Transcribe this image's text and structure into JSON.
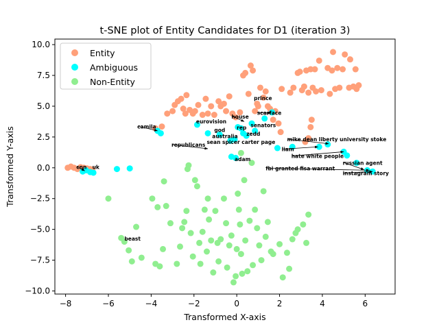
{
  "chart_data": {
    "type": "scatter",
    "title": "t-SNE plot of Entity Candidates for D1 (iteration 3)",
    "xlabel": "Transformed X-axis",
    "ylabel": "Transformed Y-axis",
    "xlim": [
      -8.5,
      7.4
    ],
    "ylim": [
      -10.25,
      10.45
    ],
    "xticks": [
      -8,
      -6,
      -4,
      -2,
      0,
      2,
      4,
      6
    ],
    "yticks": [
      -10.0,
      -7.5,
      -5.0,
      -2.5,
      0.0,
      2.5,
      5.0,
      7.5,
      10.0
    ],
    "xtick_labels": [
      "−8",
      "−6",
      "−4",
      "−2",
      "0",
      "2",
      "4",
      "6"
    ],
    "ytick_labels": [
      "−10.0",
      "−7.5",
      "−5.0",
      "−2.5",
      "0.0",
      "2.5",
      "5.0",
      "7.5",
      "10.0"
    ],
    "grid": false,
    "legend": {
      "placement": "top-left"
    },
    "series": [
      {
        "name": "Entity",
        "color": "#ffa07a",
        "points": [
          [
            -7.9,
            0.0
          ],
          [
            -7.75,
            0.1
          ],
          [
            -7.6,
            0.0
          ],
          [
            -7.45,
            -0.1
          ],
          [
            -7.3,
            0.05
          ],
          [
            -7.15,
            0.0
          ],
          [
            -7.0,
            -0.05
          ],
          [
            -6.85,
            -0.1
          ],
          [
            -6.75,
            -0.15
          ],
          [
            -3.8,
            3.2
          ],
          [
            -3.5,
            3.35
          ],
          [
            -3.25,
            4.4
          ],
          [
            -3.0,
            4.6
          ],
          [
            -2.9,
            5.1
          ],
          [
            -2.75,
            5.4
          ],
          [
            -2.6,
            5.6
          ],
          [
            -2.5,
            4.8
          ],
          [
            -2.4,
            4.4
          ],
          [
            -2.35,
            5.9
          ],
          [
            -2.2,
            4.7
          ],
          [
            -2.05,
            4.4
          ],
          [
            -1.95,
            4.6
          ],
          [
            -1.8,
            5.1
          ],
          [
            -1.6,
            4.3
          ],
          [
            -1.45,
            5.6
          ],
          [
            -1.35,
            4.4
          ],
          [
            -1.2,
            5.0
          ],
          [
            -1.05,
            4.3
          ],
          [
            -0.85,
            5.4
          ],
          [
            -0.75,
            5.0
          ],
          [
            -0.6,
            5.2
          ],
          [
            -0.5,
            4.6
          ],
          [
            -0.35,
            5.8
          ],
          [
            -0.2,
            4.4
          ],
          [
            -0.05,
            4.1
          ],
          [
            0.15,
            4.5
          ],
          [
            0.3,
            7.5
          ],
          [
            0.4,
            7.7
          ],
          [
            0.55,
            6.0
          ],
          [
            0.65,
            8.3
          ],
          [
            0.75,
            7.9
          ],
          [
            0.85,
            4.6
          ],
          [
            0.95,
            5.2
          ],
          [
            1.0,
            5.0
          ],
          [
            1.1,
            6.5
          ],
          [
            1.25,
            5.7
          ],
          [
            1.35,
            6.2
          ],
          [
            1.45,
            5.0
          ],
          [
            1.55,
            4.8
          ],
          [
            1.7,
            3.9
          ],
          [
            1.8,
            4.6
          ],
          [
            1.95,
            3.6
          ],
          [
            2.05,
            2.9
          ],
          [
            2.1,
            6.4
          ],
          [
            2.5,
            6.1
          ],
          [
            2.65,
            6.5
          ],
          [
            2.85,
            7.7
          ],
          [
            2.95,
            7.8
          ],
          [
            3.05,
            6.3
          ],
          [
            3.15,
            6.6
          ],
          [
            3.25,
            7.9
          ],
          [
            3.35,
            6.1
          ],
          [
            3.45,
            8.0
          ],
          [
            3.55,
            6.5
          ],
          [
            3.65,
            8.0
          ],
          [
            3.7,
            6.2
          ],
          [
            3.85,
            8.7
          ],
          [
            3.95,
            6.3
          ],
          [
            3.2,
            2.1
          ],
          [
            3.35,
            2.4
          ],
          [
            3.45,
            3.3
          ],
          [
            3.5,
            3.9
          ],
          [
            4.25,
            8.1
          ],
          [
            4.35,
            6.0
          ],
          [
            4.45,
            7.9
          ],
          [
            4.5,
            9.4
          ],
          [
            4.6,
            6.4
          ],
          [
            4.7,
            8.1
          ],
          [
            4.8,
            6.5
          ],
          [
            4.95,
            8.0
          ],
          [
            5.05,
            9.2
          ],
          [
            5.3,
            8.8
          ],
          [
            5.45,
            6.6
          ],
          [
            5.55,
            8.0
          ],
          [
            5.6,
            6.4
          ],
          [
            5.7,
            6.7
          ],
          [
            5.25,
            6.5
          ]
        ]
      },
      {
        "name": "Ambiguous",
        "color": "#00ffff",
        "points": [
          [
            -7.2,
            -0.3
          ],
          [
            -7.05,
            -0.2
          ],
          [
            -6.85,
            -0.35
          ],
          [
            -6.7,
            -0.4
          ],
          [
            -5.6,
            -0.1
          ],
          [
            -5.0,
            -0.05
          ],
          [
            -3.7,
            3.0
          ],
          [
            -3.55,
            2.8
          ],
          [
            -1.85,
            3.5
          ],
          [
            -1.35,
            2.8
          ],
          [
            -0.8,
            2.7
          ],
          [
            -0.3,
            2.2
          ],
          [
            -0.1,
            2.3
          ],
          [
            -0.25,
            0.9
          ],
          [
            -0.05,
            0.8
          ],
          [
            0.05,
            3.3
          ],
          [
            0.2,
            3.2
          ],
          [
            0.3,
            2.8
          ],
          [
            0.45,
            2.6
          ],
          [
            0.7,
            3.6
          ],
          [
            0.85,
            3.0
          ],
          [
            1.3,
            4.0
          ],
          [
            1.65,
            4.5
          ],
          [
            1.9,
            1.6
          ],
          [
            2.6,
            1.7
          ],
          [
            3.85,
            1.7
          ],
          [
            4.25,
            1.9
          ],
          [
            5.0,
            1.3
          ],
          [
            5.15,
            1.0
          ],
          [
            5.6,
            0.4
          ],
          [
            6.1,
            -0.2
          ],
          [
            6.35,
            -0.3
          ]
        ]
      },
      {
        "name": "Non-Entity",
        "color": "#90ee90",
        "points": [
          [
            -6.0,
            -2.5
          ],
          [
            -5.4,
            -5.7
          ],
          [
            -5.25,
            -6.0
          ],
          [
            -5.05,
            -6.7
          ],
          [
            -4.9,
            -7.6
          ],
          [
            -4.7,
            -4.8
          ],
          [
            -4.45,
            -7.3
          ],
          [
            -3.95,
            -2.5
          ],
          [
            -3.8,
            -7.8
          ],
          [
            -3.7,
            -3.2
          ],
          [
            -3.6,
            -8.0
          ],
          [
            -3.45,
            -6.6
          ],
          [
            -3.4,
            -1.1
          ],
          [
            -3.3,
            -3.1
          ],
          [
            -3.1,
            -4.5
          ],
          [
            -2.8,
            -7.8
          ],
          [
            -2.65,
            -6.4
          ],
          [
            -2.55,
            -4.9
          ],
          [
            -2.45,
            -4.4
          ],
          [
            -2.35,
            -3.5
          ],
          [
            -2.3,
            -0.1
          ],
          [
            -2.25,
            0.2
          ],
          [
            -2.15,
            -5.3
          ],
          [
            -2.05,
            -7.2
          ],
          [
            -1.95,
            -1.0
          ],
          [
            -1.85,
            -1.5
          ],
          [
            -1.75,
            -6.1
          ],
          [
            -1.7,
            -7.8
          ],
          [
            -1.6,
            -5.2
          ],
          [
            -1.5,
            -3.4
          ],
          [
            -1.4,
            -6.8
          ],
          [
            -1.35,
            -2.5
          ],
          [
            -1.3,
            -4.2
          ],
          [
            -1.2,
            -5.9
          ],
          [
            -1.1,
            -8.5
          ],
          [
            -1.0,
            -3.5
          ],
          [
            -0.9,
            -6.1
          ],
          [
            -0.85,
            -7.6
          ],
          [
            -0.75,
            -5.8
          ],
          [
            -0.6,
            -2.5
          ],
          [
            -0.5,
            -4.5
          ],
          [
            -0.45,
            -8.1
          ],
          [
            -0.35,
            -6.3
          ],
          [
            -0.25,
            -5.5
          ],
          [
            -0.15,
            -9.3
          ],
          [
            -0.05,
            -8.8
          ],
          [
            0.0,
            -6.6
          ],
          [
            0.05,
            -2.1
          ],
          [
            0.1,
            -3.4
          ],
          [
            0.15,
            -4.6
          ],
          [
            0.2,
            -7.0
          ],
          [
            0.25,
            -8.6
          ],
          [
            0.35,
            -1.0
          ],
          [
            0.4,
            -5.9
          ],
          [
            0.5,
            -8.4
          ],
          [
            0.6,
            -4.3
          ],
          [
            0.75,
            -7.9
          ],
          [
            0.85,
            -3.4
          ],
          [
            0.95,
            -4.9
          ],
          [
            1.05,
            -6.3
          ],
          [
            1.15,
            -7.5
          ],
          [
            1.25,
            -1.9
          ],
          [
            1.35,
            -5.6
          ],
          [
            1.45,
            -4.4
          ],
          [
            1.6,
            -6.8
          ],
          [
            1.7,
            -7.0
          ],
          [
            2.0,
            -6.2
          ],
          [
            2.15,
            -8.9
          ],
          [
            2.35,
            -6.9
          ],
          [
            2.45,
            -8.2
          ],
          [
            2.6,
            -5.8
          ],
          [
            2.75,
            -5.3
          ],
          [
            2.85,
            -5.0
          ],
          [
            3.1,
            -4.6
          ],
          [
            3.25,
            -6.1
          ],
          [
            3.35,
            -3.8
          ],
          [
            0.7,
            0.4
          ],
          [
            0.2,
            1.2
          ]
        ]
      }
    ],
    "annotations": [
      {
        "text": "camila",
        "x": -4.65,
        "y": 3.2,
        "ax": -3.7,
        "ay": 3.0
      },
      {
        "text": "cnn",
        "x": -7.5,
        "y": -0.1,
        "ax": -7.1,
        "ay": -0.25
      },
      {
        "text": "uk",
        "x": -6.75,
        "y": -0.1,
        "ax": -6.75,
        "ay": -0.3
      },
      {
        "text": "beast",
        "x": -5.25,
        "y": -5.9,
        "ax": -5.45,
        "ay": -5.7
      },
      {
        "text": "eurovision",
        "x": -1.9,
        "y": 3.6,
        "ax": -1.85,
        "ay": 3.45
      },
      {
        "text": "god",
        "x": -1.05,
        "y": 2.9,
        "ax": -1.25,
        "ay": 2.75
      },
      {
        "text": "australia",
        "x": -1.15,
        "y": 2.4,
        "ax": -1.1,
        "ay": 2.4
      },
      {
        "text": "republicans",
        "x": -3.05,
        "y": 1.7,
        "ax": -1.35,
        "ay": 1.55
      },
      {
        "text": "sean spicer carter page",
        "x": -1.4,
        "y": 1.95,
        "ax": -1.4,
        "ay": 1.95
      },
      {
        "text": "house",
        "x": -0.25,
        "y": 4.0,
        "ax": 0.35,
        "ay": 3.75
      },
      {
        "text": "prince",
        "x": 0.8,
        "y": 5.5,
        "ax": 0.9,
        "ay": 5.2
      },
      {
        "text": "scarface",
        "x": 0.95,
        "y": 4.3,
        "ax": 1.6,
        "ay": 4.45
      },
      {
        "text": "senators",
        "x": 0.65,
        "y": 3.3,
        "ax": 0.65,
        "ay": 3.3
      },
      {
        "text": "rep",
        "x": 0.0,
        "y": 3.1,
        "ax": 0.2,
        "ay": 3.2
      },
      {
        "text": "zedd",
        "x": 0.45,
        "y": 2.6,
        "ax": 0.55,
        "ay": 2.6
      },
      {
        "text": "adam",
        "x": -0.1,
        "y": 0.55,
        "ax": -0.15,
        "ay": 0.8
      },
      {
        "text": "mike dean liberty university stoke",
        "x": 2.35,
        "y": 2.15,
        "ax": 4.3,
        "ay": 1.95
      },
      {
        "text": "liam",
        "x": 2.1,
        "y": 1.35,
        "ax": 3.8,
        "ay": 1.7
      },
      {
        "text": "hate white people",
        "x": 2.55,
        "y": 0.8,
        "ax": 5.0,
        "ay": 1.3
      },
      {
        "text": "russian agent",
        "x": 4.95,
        "y": 0.25,
        "ax": 5.95,
        "ay": -0.15
      },
      {
        "text": "fbi granted fisa warrant",
        "x": 1.35,
        "y": -0.2,
        "ax": 6.2,
        "ay": -0.2
      },
      {
        "text": "instagram story",
        "x": 4.95,
        "y": -0.6,
        "ax": 6.35,
        "ay": -0.3
      }
    ]
  }
}
